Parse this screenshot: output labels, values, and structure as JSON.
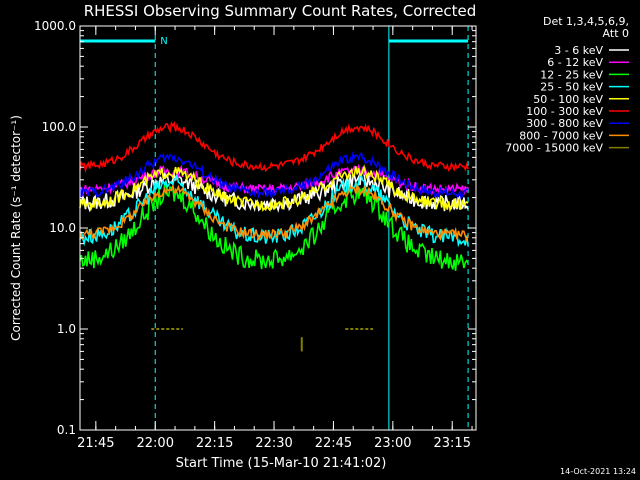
{
  "chart_data": {
    "type": "line",
    "title": "RHESSI Observing Summary Count Rates, Corrected",
    "xlabel": "Start Time (15-Mar-10 21:41:02)",
    "ylabel": "Corrected Count Rate (s⁻¹ detector⁻¹)",
    "y_scale": "log",
    "ylim": [
      0.1,
      1000.0
    ],
    "y_ticks": [
      {
        "value": 0.1,
        "label": "0.1"
      },
      {
        "value": 1.0,
        "label": "1.0"
      },
      {
        "value": 10.0,
        "label": "10.0"
      },
      {
        "value": 100.0,
        "label": "100.0"
      },
      {
        "value": 1000.0,
        "label": "1000.0"
      }
    ],
    "xlim": [
      "21:41",
      "23:21"
    ],
    "x_ticks": [
      {
        "time": "21:45",
        "label": "21:45"
      },
      {
        "time": "22:00",
        "label": "22:00"
      },
      {
        "time": "22:15",
        "label": "22:15"
      },
      {
        "time": "22:30",
        "label": "22:30"
      },
      {
        "time": "22:45",
        "label": "22:45"
      },
      {
        "time": "23:00",
        "label": "23:00"
      },
      {
        "time": "23:15",
        "label": "23:15"
      }
    ],
    "legend_header": [
      "Det 1,3,4,5,6,9,",
      "Att 0"
    ],
    "legend_position": "right, outside plot",
    "series": [
      {
        "name": "3 - 6 keV",
        "color": "#ffffff",
        "base": 17.5,
        "peak": 30,
        "noise": 0.08
      },
      {
        "name": "6 - 12 keV",
        "color": "#ff00ff",
        "base": 24,
        "peak": 37,
        "noise": 0.05
      },
      {
        "name": "12 - 25 keV",
        "color": "#00ff00",
        "base": 4.7,
        "peak": 22,
        "noise": 0.1
      },
      {
        "name": "25 - 50 keV",
        "color": "#00ffff",
        "base": 8.0,
        "peak": 28,
        "noise": 0.08
      },
      {
        "name": "50 - 100 keV",
        "color": "#ffff00",
        "base": 17,
        "peak": 36,
        "noise": 0.06
      },
      {
        "name": "100 - 300 keV",
        "color": "#ff0000",
        "base": 40,
        "peak": 100,
        "noise": 0.04
      },
      {
        "name": "300 - 800 keV",
        "color": "#0000ff",
        "base": 22,
        "peak": 50,
        "noise": 0.05
      },
      {
        "name": "800 - 7000 keV",
        "color": "#ff8c00",
        "base": 8.5,
        "peak": 24,
        "noise": 0.05
      },
      {
        "name": "7000 - 15000 keV",
        "color": "#808000",
        "base": 1.0,
        "peak": 1.0,
        "noise": 0.0
      }
    ],
    "solar_events": [
      {
        "type": "night",
        "start": "21:41",
        "end": "22:00"
      },
      {
        "type": "night",
        "start": "22:59",
        "end": "23:19"
      }
    ],
    "event_markers": [
      {
        "label": "N",
        "time": "22:00"
      }
    ],
    "annotations": [
      "14-Oct-2021 13:24"
    ]
  },
  "colors": {
    "background": "#000000",
    "axes": "#ffffff",
    "night_band": "#00ffff"
  }
}
